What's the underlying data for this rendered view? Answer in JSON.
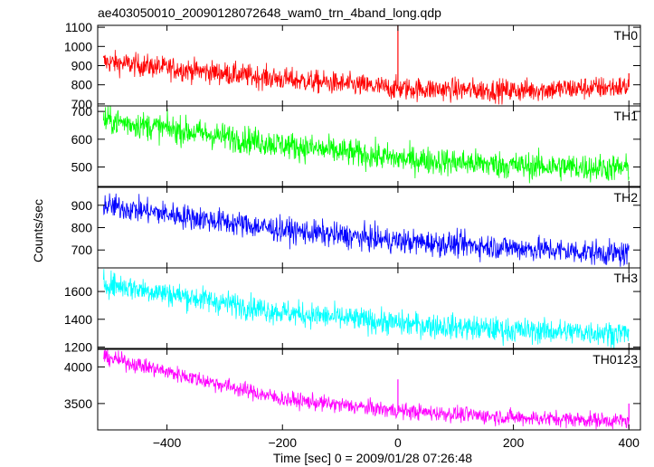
{
  "chart_data": {
    "type": "line",
    "title": "ae403050010_20090128072648_wam0_trn_4band_long.qdp",
    "xlabel": "Time [sec] 0 = 2009/01/28 07:26:48",
    "ylabel": "Counts/sec",
    "xlim": [
      -520,
      420
    ],
    "xticks": [
      -400,
      -200,
      0,
      200,
      400
    ],
    "panels": [
      {
        "name": "TH0",
        "color": "#ff0000",
        "ylim": [
          690,
          1110
        ],
        "yticks": [
          700,
          800,
          900,
          1000,
          1100
        ],
        "trend": [
          {
            "x": -510,
            "y": 920
          },
          {
            "x": -200,
            "y": 830
          },
          {
            "x": 0,
            "y": 780
          },
          {
            "x": 200,
            "y": 770
          },
          {
            "x": 400,
            "y": 790
          }
        ],
        "noise": 30,
        "spikes": [
          {
            "x": 0,
            "y": 1110
          },
          {
            "x": 400,
            "y": 860
          }
        ]
      },
      {
        "name": "TH1",
        "color": "#00ff00",
        "ylim": [
          430,
          720
        ],
        "yticks": [
          500,
          600,
          700
        ],
        "trend": [
          {
            "x": -510,
            "y": 670
          },
          {
            "x": -200,
            "y": 580
          },
          {
            "x": 0,
            "y": 530
          },
          {
            "x": 200,
            "y": 505
          },
          {
            "x": 400,
            "y": 495
          }
        ],
        "noise": 25,
        "spikes": []
      },
      {
        "name": "TH2",
        "color": "#0000ff",
        "ylim": [
          620,
          980
        ],
        "yticks": [
          700,
          800,
          900
        ],
        "trend": [
          {
            "x": -510,
            "y": 900
          },
          {
            "x": -200,
            "y": 790
          },
          {
            "x": 0,
            "y": 740
          },
          {
            "x": 200,
            "y": 710
          },
          {
            "x": 400,
            "y": 680
          }
        ],
        "noise": 28,
        "spikes": []
      },
      {
        "name": "TH3",
        "color": "#00ffff",
        "ylim": [
          1190,
          1770
        ],
        "yticks": [
          1200,
          1400,
          1600
        ],
        "trend": [
          {
            "x": -510,
            "y": 1660
          },
          {
            "x": -200,
            "y": 1450
          },
          {
            "x": 0,
            "y": 1370
          },
          {
            "x": 200,
            "y": 1320
          },
          {
            "x": 400,
            "y": 1300
          }
        ],
        "noise": 45,
        "spikes": []
      },
      {
        "name": "TH0123",
        "color": "#ff00ff",
        "ylim": [
          3140,
          4240
        ],
        "yticks": [
          3500,
          4000
        ],
        "trend": [
          {
            "x": -510,
            "y": 4140
          },
          {
            "x": -200,
            "y": 3560
          },
          {
            "x": 0,
            "y": 3400
          },
          {
            "x": 200,
            "y": 3310
          },
          {
            "x": 400,
            "y": 3260
          }
        ],
        "noise": 55,
        "spikes": [
          {
            "x": 0,
            "y": 3830
          },
          {
            "x": 400,
            "y": 3500
          }
        ]
      }
    ]
  }
}
